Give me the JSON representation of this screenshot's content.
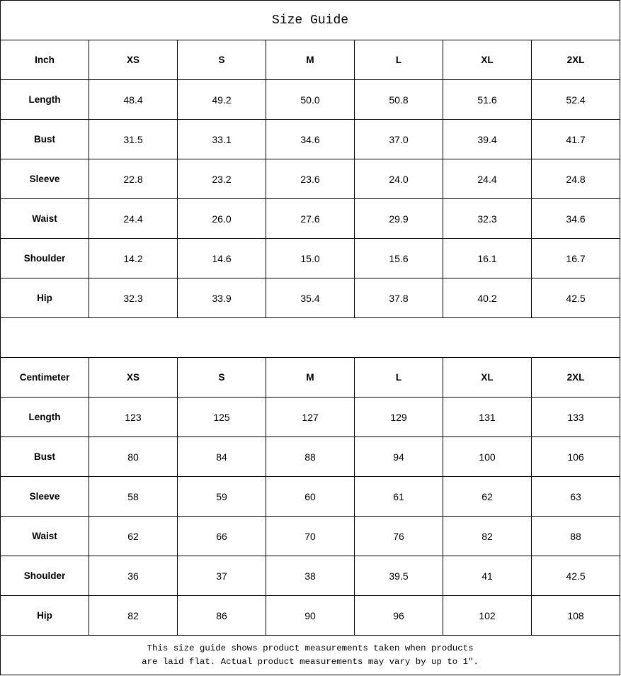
{
  "title": "Size Guide",
  "sizes": [
    "XS",
    "S",
    "M",
    "L",
    "XL",
    "2XL"
  ],
  "inch": {
    "unit": "Inch",
    "rows": [
      {
        "label": "Length",
        "values": [
          "48.4",
          "49.2",
          "50.0",
          "50.8",
          "51.6",
          "52.4"
        ]
      },
      {
        "label": "Bust",
        "values": [
          "31.5",
          "33.1",
          "34.6",
          "37.0",
          "39.4",
          "41.7"
        ]
      },
      {
        "label": "Sleeve",
        "values": [
          "22.8",
          "23.2",
          "23.6",
          "24.0",
          "24.4",
          "24.8"
        ]
      },
      {
        "label": "Waist",
        "values": [
          "24.4",
          "26.0",
          "27.6",
          "29.9",
          "32.3",
          "34.6"
        ]
      },
      {
        "label": "Shoulder",
        "values": [
          "14.2",
          "14.6",
          "15.0",
          "15.6",
          "16.1",
          "16.7"
        ]
      },
      {
        "label": "Hip",
        "values": [
          "32.3",
          "33.9",
          "35.4",
          "37.8",
          "40.2",
          "42.5"
        ]
      }
    ]
  },
  "cm": {
    "unit": "Centimeter",
    "rows": [
      {
        "label": "Length",
        "values": [
          "123",
          "125",
          "127",
          "129",
          "131",
          "133"
        ]
      },
      {
        "label": "Bust",
        "values": [
          "80",
          "84",
          "88",
          "94",
          "100",
          "106"
        ]
      },
      {
        "label": "Sleeve",
        "values": [
          "58",
          "59",
          "60",
          "61",
          "62",
          "63"
        ]
      },
      {
        "label": "Waist",
        "values": [
          "62",
          "66",
          "70",
          "76",
          "82",
          "88"
        ]
      },
      {
        "label": "Shoulder",
        "values": [
          "36",
          "37",
          "38",
          "39.5",
          "41",
          "42.5"
        ]
      },
      {
        "label": "Hip",
        "values": [
          "82",
          "86",
          "90",
          "96",
          "102",
          "108"
        ]
      }
    ]
  },
  "footer": {
    "line1": "This size guide shows product measurements taken when products",
    "line2": "are laid flat. Actual product measurements may vary by up to 1″."
  }
}
